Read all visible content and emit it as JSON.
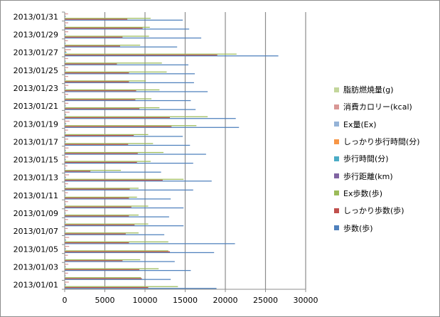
{
  "chart_data": {
    "type": "bar",
    "orientation": "horizontal",
    "title": "",
    "xlabel": "",
    "ylabel": "",
    "xlim": [
      0,
      30000
    ],
    "x_ticks": [
      "0",
      "5000",
      "10000",
      "15000",
      "20000",
      "25000",
      "30000"
    ],
    "x_tick_values": [
      0,
      5000,
      10000,
      15000,
      20000,
      25000,
      30000
    ],
    "grid": true,
    "legend_position": "right",
    "categories": [
      "2013/01/01",
      "2013/01/02",
      "2013/01/03",
      "2013/01/04",
      "2013/01/05",
      "2013/01/06",
      "2013/01/07",
      "2013/01/08",
      "2013/01/09",
      "2013/01/10",
      "2013/01/11",
      "2013/01/12",
      "2013/01/13",
      "2013/01/14",
      "2013/01/15",
      "2013/01/16",
      "2013/01/17",
      "2013/01/18",
      "2013/01/19",
      "2013/01/20",
      "2013/01/21",
      "2013/01/22",
      "2013/01/23",
      "2013/01/24",
      "2013/01/25",
      "2013/01/26",
      "2013/01/27",
      "2013/01/28",
      "2013/01/29",
      "2013/01/30",
      "2013/01/31"
    ],
    "category_labels": [
      "2013/01/01",
      "",
      "2013/01/03",
      "",
      "2013/01/05",
      "",
      "2013/01/07",
      "",
      "2013/01/09",
      "",
      "2013/01/11",
      "",
      "2013/01/13",
      "",
      "2013/01/15",
      "",
      "2013/01/17",
      "",
      "2013/01/19",
      "",
      "2013/01/21",
      "",
      "2013/01/23",
      "",
      "2013/01/25",
      "",
      "2013/01/27",
      "",
      "2013/01/29",
      "",
      "2013/01/31"
    ],
    "series": [
      {
        "name": "歩数(歩)",
        "color": "#4f81bd",
        "values": [
          18900,
          13200,
          15700,
          13700,
          18600,
          21200,
          12400,
          14800,
          13000,
          14800,
          13200,
          16000,
          18300,
          12000,
          16000,
          17600,
          15600,
          14700,
          21700,
          21300,
          16300,
          15700,
          17800,
          16100,
          16200,
          15400,
          26600,
          14000,
          17000,
          15500,
          14700
        ]
      },
      {
        "name": "しっかり歩数(歩)",
        "color": "#c0504d",
        "values": [
          10400,
          9600,
          9300,
          7200,
          13100,
          8000,
          7600,
          8700,
          8000,
          8300,
          8000,
          8100,
          12200,
          3200,
          9000,
          9100,
          7900,
          8600,
          13300,
          13100,
          9300,
          8800,
          8900,
          8000,
          8000,
          6500,
          19000,
          6900,
          7200,
          9700,
          7800
        ]
      },
      {
        "name": "Ex歩数(歩)",
        "color": "#9bbb59",
        "values": [
          14100,
          9500,
          11700,
          9400,
          12900,
          12900,
          9200,
          10400,
          9200,
          10400,
          9000,
          9200,
          14800,
          7000,
          10700,
          12300,
          11000,
          10400,
          16400,
          17800,
          11800,
          10800,
          11800,
          10100,
          12700,
          12100,
          21400,
          9400,
          10500,
          10600,
          10700
        ]
      },
      {
        "name": "歩行距離(km)",
        "color": "#8064a2",
        "values": [
          13,
          10,
          12,
          10,
          13,
          16,
          9,
          11,
          10,
          11,
          10,
          11,
          13,
          9,
          12,
          13,
          12,
          11,
          16,
          16,
          12,
          12,
          13,
          12,
          12,
          11,
          20,
          10,
          13,
          11,
          11
        ]
      },
      {
        "name": "歩行時間(分)",
        "color": "#4bacc6",
        "values": [
          160,
          120,
          140,
          120,
          160,
          190,
          110,
          130,
          120,
          130,
          120,
          140,
          160,
          110,
          140,
          150,
          140,
          130,
          190,
          190,
          140,
          140,
          160,
          140,
          140,
          140,
          230,
          120,
          150,
          140,
          130
        ]
      },
      {
        "name": "しっかり歩行時間(分)",
        "color": "#f79646",
        "values": [
          90,
          80,
          80,
          60,
          110,
          70,
          60,
          70,
          70,
          70,
          70,
          70,
          100,
          30,
          80,
          80,
          70,
          70,
          110,
          110,
          80,
          70,
          80,
          70,
          70,
          60,
          160,
          60,
          60,
          80,
          70
        ]
      },
      {
        "name": "Ex量(Ex)",
        "color": "#95b3d7",
        "values": [
          4,
          3,
          4,
          3,
          4,
          5,
          3,
          3,
          3,
          3,
          3,
          3,
          4,
          2,
          3,
          4,
          3,
          3,
          5,
          5,
          3,
          3,
          4,
          3,
          3,
          3,
          6,
          3,
          3,
          3,
          3
        ]
      },
      {
        "name": "消費カロリー(kcal)",
        "color": "#d99795",
        "values": [
          520,
          420,
          460,
          400,
          560,
          560,
          380,
          420,
          400,
          420,
          400,
          420,
          540,
          330,
          450,
          480,
          440,
          420,
          600,
          600,
          460,
          440,
          460,
          440,
          440,
          420,
          780,
          400,
          440,
          440,
          420
        ]
      },
      {
        "name": "脂肪燃焼量(g)",
        "color": "#c3d69b",
        "values": [
          40,
          30,
          35,
          30,
          42,
          45,
          28,
          32,
          30,
          32,
          30,
          32,
          42,
          25,
          35,
          38,
          35,
          32,
          48,
          48,
          35,
          35,
          38,
          35,
          35,
          32,
          60,
          30,
          35,
          35,
          32
        ]
      }
    ]
  }
}
